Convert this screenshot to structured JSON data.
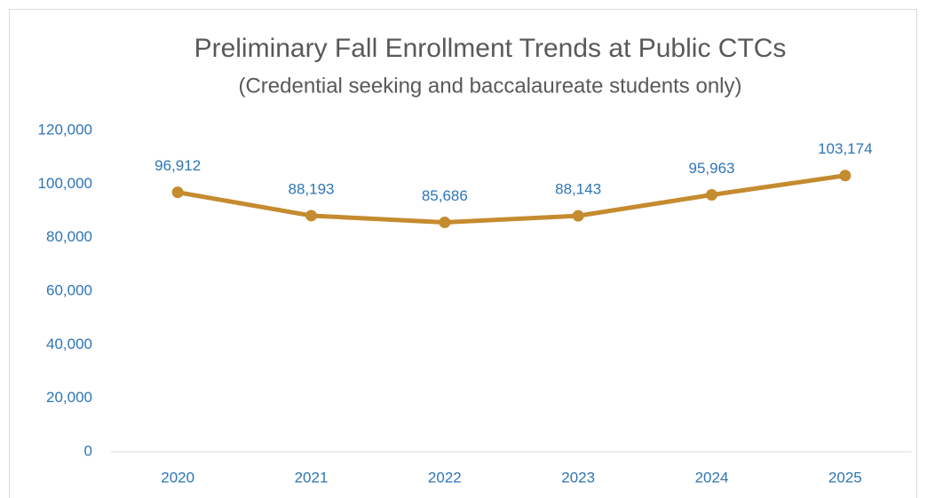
{
  "chart_data": {
    "type": "line",
    "title": "Preliminary Fall Enrollment Trends at Public CTCs",
    "subtitle": "(Credential seeking and baccalaureate students only)",
    "categories": [
      "2020",
      "2021",
      "2022",
      "2023",
      "2024",
      "2025"
    ],
    "series": [
      {
        "name": "Enrollment",
        "color": "#c48b2f",
        "values": [
          96912,
          88193,
          85686,
          88143,
          95963,
          103174
        ],
        "value_labels": [
          "96,912",
          "88,193",
          "85,686",
          "88,143",
          "95,963",
          "103,174"
        ]
      }
    ],
    "ylim": [
      0,
      120000
    ],
    "yticks": [
      {
        "value": 0,
        "label": "0"
      },
      {
        "value": 20000,
        "label": "20,000"
      },
      {
        "value": 40000,
        "label": "40,000"
      },
      {
        "value": 60000,
        "label": "60,000"
      },
      {
        "value": 80000,
        "label": "80,000"
      },
      {
        "value": 100000,
        "label": "100,000"
      },
      {
        "value": 120000,
        "label": "120,000"
      }
    ],
    "grid": false
  }
}
